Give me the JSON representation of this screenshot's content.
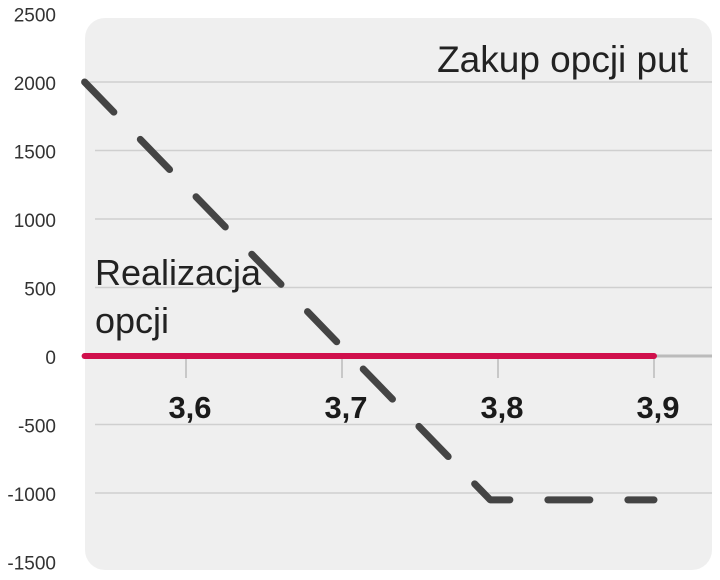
{
  "chart_data": {
    "type": "line",
    "title": "Zakup opcji put",
    "xlabel": "",
    "ylabel": "",
    "x_ticks": [
      "3,6",
      "3,7",
      "3,8",
      "3,9"
    ],
    "x_tick_values": [
      3.6,
      3.7,
      3.8,
      3.9
    ],
    "y_ticks": [
      "2500",
      "2000",
      "1500",
      "1000",
      "500",
      "0",
      "-500",
      "-1000",
      "-1500"
    ],
    "y_tick_values": [
      2500,
      2000,
      1500,
      1000,
      500,
      0,
      -500,
      -1000,
      -1500
    ],
    "xlim": [
      3.535,
      3.9
    ],
    "ylim": [
      -1500,
      2500
    ],
    "grid": true,
    "annotation": "Realizacja opcji",
    "series": [
      {
        "style": "dashed",
        "color": "#444444",
        "x": [
          3.535,
          3.795,
          3.9
        ],
        "y": [
          2000,
          -1050,
          -1050
        ]
      },
      {
        "style": "solid",
        "color": "#d0104c",
        "x": [
          3.535,
          3.9
        ],
        "y": [
          0,
          0
        ]
      }
    ],
    "colors": {
      "panel": "#efefef",
      "grid": "#cfcfcf",
      "dashed": "#444444",
      "zero_line": "#d0104c"
    }
  }
}
